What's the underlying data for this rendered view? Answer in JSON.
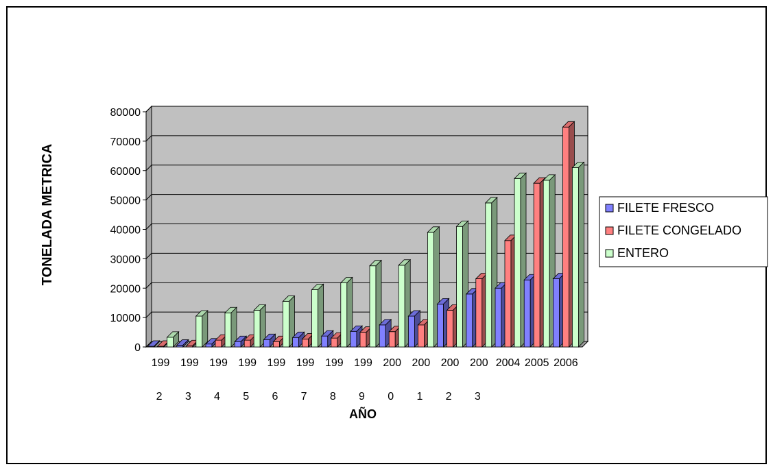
{
  "chart_data": {
    "type": "bar",
    "style": "3d-clustered-column",
    "title": "",
    "xlabel": "AÑO",
    "ylabel": "TONELADA METRICA",
    "ylim": [
      0,
      80000
    ],
    "yticks": [
      "0",
      "10000",
      "20000",
      "30000",
      "40000",
      "50000",
      "60000",
      "70000",
      "80000"
    ],
    "grid": true,
    "legend_position": "right",
    "categories": [
      "1992",
      "1993",
      "1994",
      "1995",
      "1996",
      "1997",
      "1998",
      "1999",
      "2000",
      "2001",
      "2002",
      "2003",
      "2004",
      "2005",
      "2006"
    ],
    "category_label_lines": [
      [
        "199",
        "2"
      ],
      [
        "199",
        "3"
      ],
      [
        "199",
        "4"
      ],
      [
        "199",
        "5"
      ],
      [
        "199",
        "6"
      ],
      [
        "199",
        "7"
      ],
      [
        "199",
        "8"
      ],
      [
        "199",
        "9"
      ],
      [
        "200",
        "0"
      ],
      [
        "200",
        "1"
      ],
      [
        "200",
        "2"
      ],
      [
        "200",
        "3"
      ],
      [
        "2004",
        ""
      ],
      [
        "2005",
        ""
      ],
      [
        "2006",
        ""
      ]
    ],
    "series": [
      {
        "name": "FILETE FRESCO",
        "color": "#8080ff",
        "values": [
          200,
          600,
          1000,
          1800,
          2500,
          3200,
          3700,
          5300,
          7500,
          10500,
          14600,
          18000,
          20000,
          22800,
          23200
        ]
      },
      {
        "name": "FILETE CONGELADO",
        "color": "#ff8080",
        "values": [
          100,
          400,
          2300,
          2300,
          1800,
          2700,
          3000,
          5000,
          5200,
          7500,
          12500,
          23200,
          36200,
          55700,
          74800
        ]
      },
      {
        "name": "ENTERO",
        "color": "#ccffcc",
        "values": [
          3300,
          10500,
          11600,
          12500,
          15500,
          19500,
          21800,
          27600,
          27800,
          39000,
          41000,
          49000,
          57300,
          56700,
          61000
        ]
      }
    ],
    "plot_background": "#c0c0c0",
    "gridline_color": "#000000"
  }
}
